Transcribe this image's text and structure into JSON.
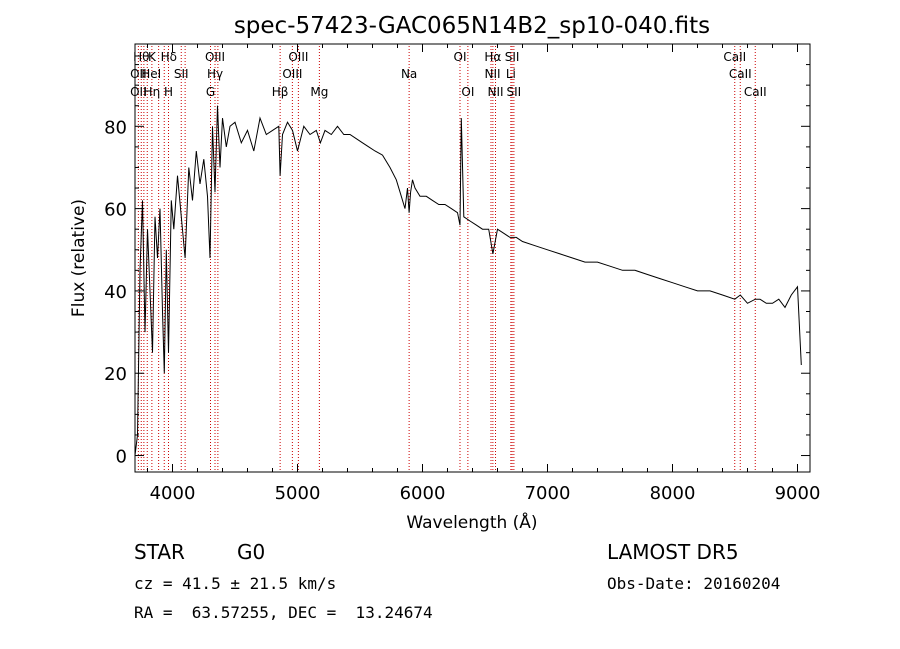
{
  "chart_data": {
    "type": "line",
    "title": "spec-57423-GAC065N14B2_sp10-040.fits",
    "xlabel": "Wavelength (Å)",
    "ylabel": "Flux (relative)",
    "xlim": [
      3700,
      9100
    ],
    "ylim": [
      -4,
      100
    ],
    "xticks": [
      4000,
      5000,
      6000,
      7000,
      8000,
      9000
    ],
    "yticks": [
      0,
      20,
      40,
      60,
      80
    ],
    "grid": false,
    "series": [
      {
        "x": [
          3700,
          3720,
          3740,
          3760,
          3780,
          3800,
          3820,
          3840,
          3860,
          3880,
          3900,
          3920,
          3934,
          3950,
          3968,
          3990,
          4010,
          4040,
          4070,
          4101,
          4130,
          4160,
          4190,
          4220,
          4250,
          4280,
          4300,
          4320,
          4340,
          4360,
          4380,
          4400,
          4430,
          4460,
          4500,
          4550,
          4600,
          4650,
          4700,
          4750,
          4800,
          4850,
          4861,
          4880,
          4920,
          4960,
          5000,
          5050,
          5100,
          5150,
          5183,
          5220,
          5270,
          5320,
          5370,
          5420,
          5470,
          5520,
          5570,
          5620,
          5680,
          5740,
          5790,
          5830,
          5860,
          5880,
          5893,
          5905,
          5920,
          5940,
          5980,
          6030,
          6080,
          6130,
          6180,
          6230,
          6280,
          6300,
          6310,
          6330,
          6380,
          6430,
          6480,
          6530,
          6563,
          6600,
          6650,
          6700,
          6750,
          6800,
          6900,
          7000,
          7100,
          7200,
          7300,
          7400,
          7500,
          7600,
          7700,
          7800,
          7900,
          8000,
          8100,
          8200,
          8300,
          8400,
          8498,
          8542,
          8600,
          8662,
          8700,
          8750,
          8800,
          8850,
          8900,
          8950,
          9000,
          9030
        ],
        "values": [
          0,
          5,
          45,
          62,
          30,
          55,
          40,
          25,
          58,
          48,
          60,
          35,
          20,
          50,
          25,
          62,
          55,
          68,
          58,
          48,
          70,
          62,
          74,
          66,
          72,
          63,
          48,
          80,
          64,
          85,
          70,
          82,
          75,
          80,
          81,
          76,
          79,
          74,
          82,
          78,
          79,
          80,
          68,
          78,
          81,
          79,
          74,
          80,
          78,
          79,
          76,
          79,
          78,
          80,
          78,
          78,
          77,
          76,
          75,
          74,
          73,
          70,
          67,
          63,
          60,
          65,
          59,
          64,
          67,
          65,
          63,
          63,
          62,
          61,
          61,
          60,
          59,
          56,
          82,
          58,
          57,
          56,
          55,
          55,
          49,
          55,
          54,
          53,
          53,
          52,
          51,
          50,
          49,
          48,
          47,
          47,
          46,
          45,
          45,
          44,
          43,
          42,
          41,
          40,
          40,
          39,
          38,
          39,
          37,
          38,
          38,
          37,
          37,
          38,
          36,
          39,
          41,
          22
        ]
      }
    ],
    "line_labels": [
      {
        "w": 3750,
        "row": 0,
        "text": "Hθ"
      },
      {
        "w": 3835,
        "row": 0,
        "text": "K"
      },
      {
        "w": 3970,
        "row": 0,
        "text": "Hδ"
      },
      {
        "w": 4340,
        "row": 0,
        "text": "OIII"
      },
      {
        "w": 5007,
        "row": 0,
        "text": "OIII"
      },
      {
        "w": 6300,
        "row": 0,
        "text": "OI"
      },
      {
        "w": 6563,
        "row": 0,
        "text": "Hα"
      },
      {
        "w": 6717,
        "row": 0,
        "text": "SII"
      },
      {
        "w": 8498,
        "row": 0,
        "text": "CaII"
      },
      {
        "w": 3727,
        "row": 1,
        "text": "OII"
      },
      {
        "w": 3830,
        "row": 1,
        "text": "HeI"
      },
      {
        "w": 4070,
        "row": 1,
        "text": "SII"
      },
      {
        "w": 4340,
        "row": 1,
        "text": "Hγ"
      },
      {
        "w": 4959,
        "row": 1,
        "text": "OIII"
      },
      {
        "w": 5893,
        "row": 1,
        "text": "Na"
      },
      {
        "w": 6560,
        "row": 1,
        "text": "NII"
      },
      {
        "w": 6707,
        "row": 1,
        "text": "Li"
      },
      {
        "w": 8542,
        "row": 1,
        "text": "CaII"
      },
      {
        "w": 3727,
        "row": 2,
        "text": "OII"
      },
      {
        "w": 3835,
        "row": 2,
        "text": "Hη"
      },
      {
        "w": 3968,
        "row": 2,
        "text": "H"
      },
      {
        "w": 4304,
        "row": 2,
        "text": "G"
      },
      {
        "w": 4861,
        "row": 2,
        "text": "Hβ"
      },
      {
        "w": 5175,
        "row": 2,
        "text": "Mg"
      },
      {
        "w": 6363,
        "row": 2,
        "text": "OI"
      },
      {
        "w": 6584,
        "row": 2,
        "text": "NII"
      },
      {
        "w": 6731,
        "row": 2,
        "text": "SII"
      },
      {
        "w": 8662,
        "row": 2,
        "text": "CaII"
      }
    ],
    "marker_lines": [
      3727,
      3750,
      3771,
      3798,
      3835,
      3889,
      3934,
      3968,
      4070,
      4101,
      4304,
      4340,
      4363,
      4861,
      4959,
      5007,
      5175,
      5893,
      6300,
      6363,
      6548,
      6563,
      6584,
      6707,
      6717,
      6731,
      8498,
      8542,
      8662
    ],
    "marker_color": "#cc0000",
    "line_color": "#000000"
  },
  "info": {
    "class_label": "STAR",
    "subclass_label": "G0",
    "survey_label": "LAMOST DR5",
    "cz_text": "cz = 41.5 ± 21.5 km/s",
    "obs_date_text": "Obs-Date: 20160204",
    "coords_text": "RA =  63.57255, DEC =  13.24674"
  }
}
